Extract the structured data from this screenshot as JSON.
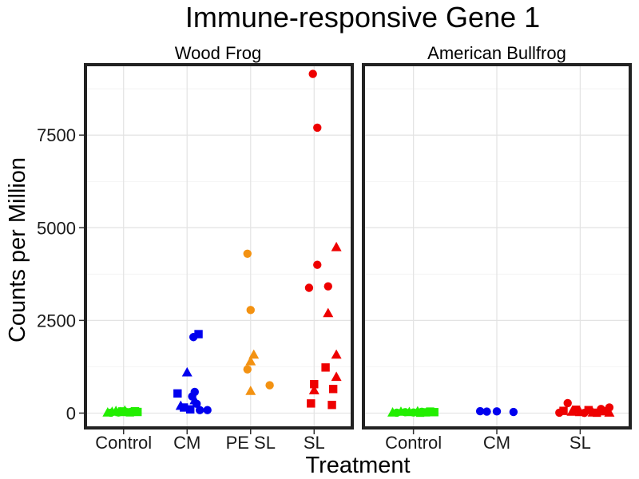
{
  "chart_data": {
    "type": "scatter",
    "title": "Immune-responsive Gene 1",
    "xlabel": "Treatment",
    "ylabel": "Counts per Million",
    "ylim": [
      -400,
      9400
    ],
    "yticks": [
      0,
      2500,
      5000,
      7500
    ],
    "grid": true,
    "colors": {
      "Control": "#22ee00",
      "CM": "#0000ee",
      "PE SL": "#f39212",
      "SL": "#ee0000"
    },
    "panels": [
      {
        "name": "Wood Frog",
        "categories": [
          "Control",
          "CM",
          "PE SL",
          "SL"
        ],
        "points": [
          {
            "cat": "Control",
            "x": -0.25,
            "y": 20,
            "shape": "triangle"
          },
          {
            "cat": "Control",
            "x": -0.18,
            "y": 40,
            "shape": "triangle"
          },
          {
            "cat": "Control",
            "x": -0.12,
            "y": 60,
            "shape": "triangle"
          },
          {
            "cat": "Control",
            "x": -0.05,
            "y": 30,
            "shape": "triangle"
          },
          {
            "cat": "Control",
            "x": 0.02,
            "y": 70,
            "shape": "triangle"
          },
          {
            "cat": "Control",
            "x": -0.2,
            "y": 10,
            "shape": "circle"
          },
          {
            "cat": "Control",
            "x": -0.08,
            "y": 15,
            "shape": "circle"
          },
          {
            "cat": "Control",
            "x": 0.05,
            "y": 25,
            "shape": "circle"
          },
          {
            "cat": "Control",
            "x": 0.12,
            "y": 35,
            "shape": "circle"
          },
          {
            "cat": "Control",
            "x": 0.18,
            "y": 50,
            "shape": "square"
          },
          {
            "cat": "Control",
            "x": 0.1,
            "y": 20,
            "shape": "square"
          },
          {
            "cat": "Control",
            "x": -0.02,
            "y": 45,
            "shape": "square"
          },
          {
            "cat": "Control",
            "x": 0.22,
            "y": 30,
            "shape": "square"
          },
          {
            "cat": "CM",
            "x": 0.18,
            "y": 2130,
            "shape": "square"
          },
          {
            "cat": "CM",
            "x": 0.1,
            "y": 2050,
            "shape": "circle"
          },
          {
            "cat": "CM",
            "x": 0.0,
            "y": 1100,
            "shape": "triangle"
          },
          {
            "cat": "CM",
            "x": -0.15,
            "y": 530,
            "shape": "square"
          },
          {
            "cat": "CM",
            "x": 0.12,
            "y": 570,
            "shape": "circle"
          },
          {
            "cat": "CM",
            "x": 0.08,
            "y": 450,
            "shape": "circle"
          },
          {
            "cat": "CM",
            "x": 0.12,
            "y": 350,
            "shape": "triangle"
          },
          {
            "cat": "CM",
            "x": 0.15,
            "y": 250,
            "shape": "circle"
          },
          {
            "cat": "CM",
            "x": -0.1,
            "y": 200,
            "shape": "triangle"
          },
          {
            "cat": "CM",
            "x": -0.05,
            "y": 150,
            "shape": "square"
          },
          {
            "cat": "CM",
            "x": 0.05,
            "y": 100,
            "shape": "square"
          },
          {
            "cat": "CM",
            "x": 0.2,
            "y": 80,
            "shape": "circle"
          },
          {
            "cat": "CM",
            "x": 0.32,
            "y": 80,
            "shape": "circle"
          },
          {
            "cat": "PE SL",
            "x": -0.05,
            "y": 4300,
            "shape": "circle"
          },
          {
            "cat": "PE SL",
            "x": 0.0,
            "y": 2780,
            "shape": "circle"
          },
          {
            "cat": "PE SL",
            "x": 0.05,
            "y": 1580,
            "shape": "triangle"
          },
          {
            "cat": "PE SL",
            "x": 0.0,
            "y": 1400,
            "shape": "triangle"
          },
          {
            "cat": "PE SL",
            "x": -0.05,
            "y": 1180,
            "shape": "circle"
          },
          {
            "cat": "PE SL",
            "x": 0.3,
            "y": 750,
            "shape": "circle"
          },
          {
            "cat": "PE SL",
            "x": 0.0,
            "y": 600,
            "shape": "triangle"
          },
          {
            "cat": "SL",
            "x": -0.02,
            "y": 9150,
            "shape": "circle"
          },
          {
            "cat": "SL",
            "x": 0.05,
            "y": 7700,
            "shape": "circle"
          },
          {
            "cat": "SL",
            "x": 0.35,
            "y": 4480,
            "shape": "triangle"
          },
          {
            "cat": "SL",
            "x": 0.05,
            "y": 4000,
            "shape": "circle"
          },
          {
            "cat": "SL",
            "x": 0.22,
            "y": 3420,
            "shape": "circle"
          },
          {
            "cat": "SL",
            "x": -0.08,
            "y": 3380,
            "shape": "circle"
          },
          {
            "cat": "SL",
            "x": 0.22,
            "y": 2700,
            "shape": "triangle"
          },
          {
            "cat": "SL",
            "x": 0.35,
            "y": 1580,
            "shape": "triangle"
          },
          {
            "cat": "SL",
            "x": 0.18,
            "y": 1230,
            "shape": "square"
          },
          {
            "cat": "SL",
            "x": 0.35,
            "y": 980,
            "shape": "triangle"
          },
          {
            "cat": "SL",
            "x": 0.0,
            "y": 780,
            "shape": "square"
          },
          {
            "cat": "SL",
            "x": 0.3,
            "y": 650,
            "shape": "square"
          },
          {
            "cat": "SL",
            "x": 0.0,
            "y": 620,
            "shape": "triangle"
          },
          {
            "cat": "SL",
            "x": -0.05,
            "y": 260,
            "shape": "square"
          },
          {
            "cat": "SL",
            "x": 0.28,
            "y": 220,
            "shape": "square"
          }
        ]
      },
      {
        "name": "American Bullfrog",
        "categories": [
          "Control",
          "CM",
          "SL"
        ],
        "points": [
          {
            "cat": "Control",
            "x": -0.25,
            "y": 20,
            "shape": "triangle"
          },
          {
            "cat": "Control",
            "x": -0.15,
            "y": 40,
            "shape": "triangle"
          },
          {
            "cat": "Control",
            "x": -0.05,
            "y": 30,
            "shape": "triangle"
          },
          {
            "cat": "Control",
            "x": 0.05,
            "y": 50,
            "shape": "triangle"
          },
          {
            "cat": "Control",
            "x": -0.2,
            "y": 10,
            "shape": "circle"
          },
          {
            "cat": "Control",
            "x": -0.1,
            "y": 25,
            "shape": "circle"
          },
          {
            "cat": "Control",
            "x": 0.0,
            "y": 15,
            "shape": "circle"
          },
          {
            "cat": "Control",
            "x": 0.1,
            "y": 35,
            "shape": "circle"
          },
          {
            "cat": "Control",
            "x": 0.15,
            "y": 20,
            "shape": "square"
          },
          {
            "cat": "Control",
            "x": 0.2,
            "y": 40,
            "shape": "square"
          },
          {
            "cat": "Control",
            "x": 0.25,
            "y": 25,
            "shape": "square"
          },
          {
            "cat": "Control",
            "x": 0.08,
            "y": 10,
            "shape": "square"
          },
          {
            "cat": "CM",
            "x": -0.2,
            "y": 50,
            "shape": "circle"
          },
          {
            "cat": "CM",
            "x": -0.12,
            "y": 40,
            "shape": "circle"
          },
          {
            "cat": "CM",
            "x": 0.0,
            "y": 45,
            "shape": "circle"
          },
          {
            "cat": "CM",
            "x": 0.2,
            "y": 30,
            "shape": "circle"
          },
          {
            "cat": "SL",
            "x": -0.15,
            "y": 270,
            "shape": "circle"
          },
          {
            "cat": "SL",
            "x": 0.35,
            "y": 150,
            "shape": "circle"
          },
          {
            "cat": "SL",
            "x": 0.25,
            "y": 110,
            "shape": "circle"
          },
          {
            "cat": "SL",
            "x": -0.05,
            "y": 90,
            "shape": "square"
          },
          {
            "cat": "SL",
            "x": 0.1,
            "y": 80,
            "shape": "square"
          },
          {
            "cat": "SL",
            "x": -0.2,
            "y": 60,
            "shape": "square"
          },
          {
            "cat": "SL",
            "x": 0.3,
            "y": 50,
            "shape": "square"
          },
          {
            "cat": "SL",
            "x": -0.1,
            "y": 40,
            "shape": "triangle"
          },
          {
            "cat": "SL",
            "x": 0.0,
            "y": 30,
            "shape": "triangle"
          },
          {
            "cat": "SL",
            "x": 0.15,
            "y": 20,
            "shape": "triangle"
          },
          {
            "cat": "SL",
            "x": 0.35,
            "y": 15,
            "shape": "triangle"
          },
          {
            "cat": "SL",
            "x": -0.25,
            "y": 10,
            "shape": "circle"
          },
          {
            "cat": "SL",
            "x": 0.2,
            "y": 10,
            "shape": "square"
          },
          {
            "cat": "SL",
            "x": 0.05,
            "y": 5,
            "shape": "circle"
          }
        ]
      }
    ]
  }
}
